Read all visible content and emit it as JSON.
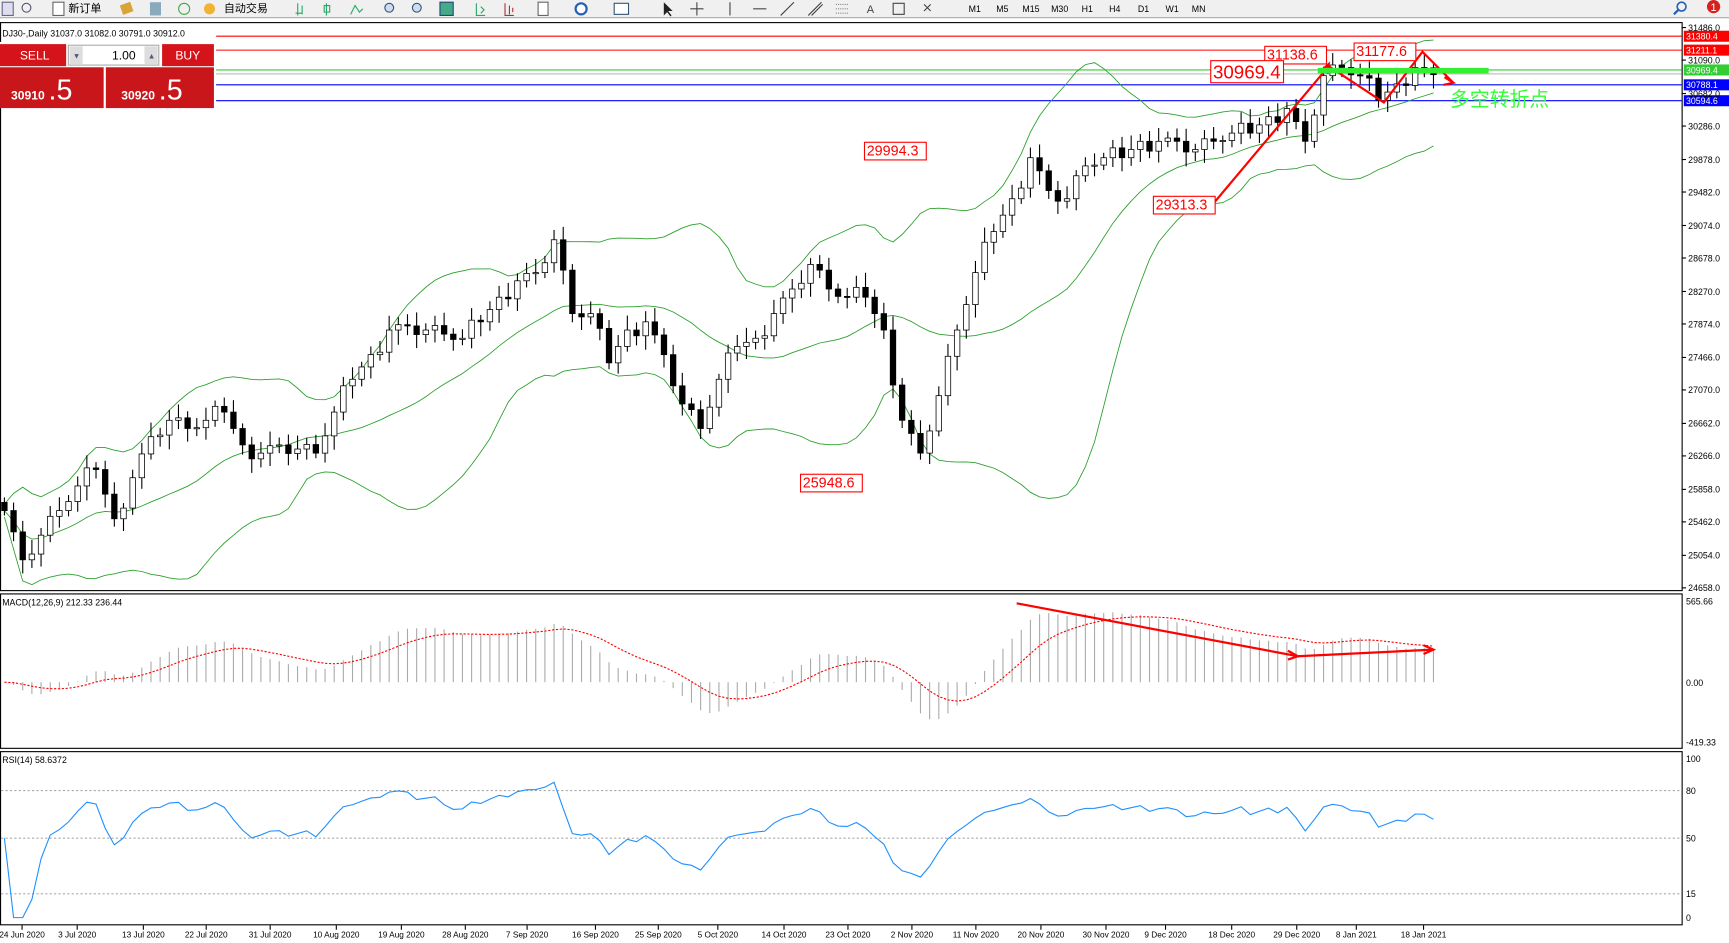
{
  "toolbar": {
    "new_order": "新订单",
    "auto_trading": "自动交易",
    "timeframes": [
      "M1",
      "M5",
      "M15",
      "M30",
      "H1",
      "H4",
      "D1",
      "W1",
      "MN"
    ],
    "notification_count": "1"
  },
  "chart": {
    "title": "DJ30-,Daily  31037.0 31082.0 30791.0 30912.0",
    "symbol": "DJ30-",
    "period": "Daily",
    "ohlc": {
      "open": 31037.0,
      "high": 31082.0,
      "low": 30791.0,
      "close": 30912.0
    }
  },
  "trade_panel": {
    "sell_label": "SELL",
    "buy_label": "BUY",
    "lot": "1.00",
    "sell_big": "30910",
    "sell_small": ".5",
    "buy_big": "30920",
    "buy_small": ".5",
    "color": "#d4141a"
  },
  "price_axis": [
    "31486.0",
    "31090.0",
    "30682.0",
    "30286.0",
    "29878.0",
    "29482.0",
    "29074.0",
    "28678.0",
    "28270.0",
    "27874.0",
    "27466.0",
    "27070.0",
    "26662.0",
    "26266.0",
    "25858.0",
    "25462.0",
    "25054.0",
    "24658.0"
  ],
  "levels": [
    {
      "price": "31380.4",
      "color": "#ff0000"
    },
    {
      "price": "31211.1",
      "color": "#ff0000"
    },
    {
      "price": "30969.4",
      "color": "#33cc33"
    },
    {
      "price": "30788.1",
      "color": "#0000ff"
    },
    {
      "price": "30594.6",
      "color": "#0000ff"
    }
  ],
  "annotations": {
    "labels": [
      "31138.6",
      "31177.6",
      "30969.4",
      "29994.3",
      "29313.3",
      "25948.6"
    ],
    "turning_point_text": "多空转折点",
    "annotation_color": "#ff0000",
    "text_color": "#33ff33"
  },
  "date_axis": [
    "24 Jun 2020",
    "3 Jul 2020",
    "13 Jul 2020",
    "22 Jul 2020",
    "31 Jul 2020",
    "10 Aug 2020",
    "19 Aug 2020",
    "28 Aug 2020",
    "7 Sep 2020",
    "16 Sep 2020",
    "25 Sep 2020",
    "5 Oct 2020",
    "14 Oct 2020",
    "23 Oct 2020",
    "2 Nov 2020",
    "11 Nov 2020",
    "20 Nov 2020",
    "30 Nov 2020",
    "9 Dec 2020",
    "18 Dec 2020",
    "29 Dec 2020",
    "8 Jan 2021",
    "18 Jan 2021"
  ],
  "macd": {
    "label": "MACD(12,26,9) 212.33 236.44",
    "axis": [
      "565.66",
      "0.00",
      "-419.33"
    ]
  },
  "rsi": {
    "label": "RSI(14) 58.6372",
    "axis": [
      "100",
      "80",
      "50",
      "15",
      "0"
    ],
    "line_color": "#1e90ff"
  },
  "closes": [
    25600,
    25000,
    25300,
    25600,
    25900,
    26100,
    25500,
    26000,
    26500,
    26700,
    26600,
    26700,
    26800,
    26400,
    26300,
    26400,
    26350,
    26300,
    26800,
    27200,
    27500,
    27800,
    27850,
    27800,
    27750,
    27700,
    27900,
    28200,
    28400,
    28500,
    28900,
    28000,
    28000,
    27400,
    27800,
    27900,
    27500,
    26900,
    26600,
    27200,
    27600,
    27700,
    28000,
    28300,
    28600,
    28300,
    28200,
    28200,
    27800,
    26700,
    26300,
    27000,
    27800,
    28500,
    29000,
    29400,
    29900,
    29500,
    29400,
    29800,
    29900,
    29900,
    30100,
    30100,
    30100,
    30000,
    30100,
    30200,
    30200,
    30400,
    30500,
    30100,
    30900,
    31000,
    30900,
    30600,
    30800,
    31000,
    30912
  ]
}
